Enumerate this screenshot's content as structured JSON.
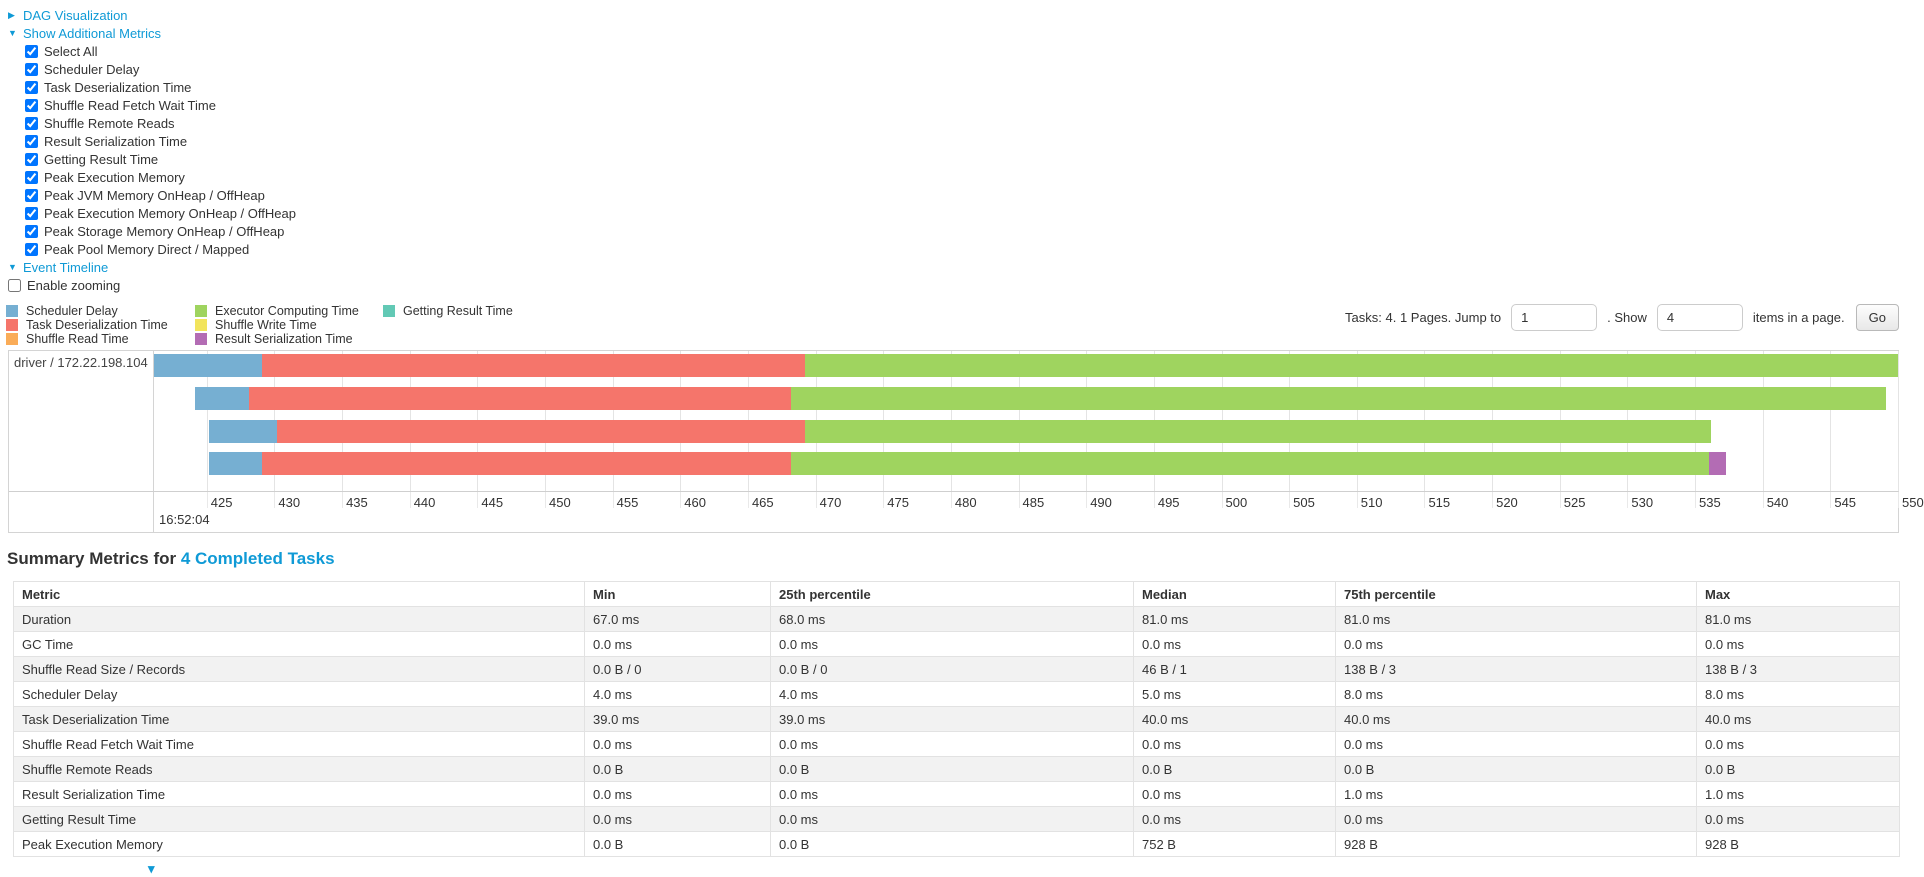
{
  "colors": {
    "link": "#0f9ad6",
    "scheduler_delay": "#76AFD2",
    "task_deserialization": "#F5756B",
    "shuffle_read": "#FAAC58",
    "executor_computing": "#9FD45F",
    "shuffle_write": "#F2E45C",
    "result_serialization": "#B36CB4",
    "getting_result": "#62C9B5"
  },
  "toggles": {
    "dag": "DAG Visualization",
    "metrics": "Show Additional Metrics",
    "timeline": "Event Timeline"
  },
  "metrics_panel": {
    "items": [
      {
        "label": "Select All",
        "checked": true
      },
      {
        "label": "Scheduler Delay",
        "checked": true
      },
      {
        "label": "Task Deserialization Time",
        "checked": true
      },
      {
        "label": "Shuffle Read Fetch Wait Time",
        "checked": true
      },
      {
        "label": "Shuffle Remote Reads",
        "checked": true
      },
      {
        "label": "Result Serialization Time",
        "checked": true
      },
      {
        "label": "Getting Result Time",
        "checked": true
      },
      {
        "label": "Peak Execution Memory",
        "checked": true
      },
      {
        "label": "Peak JVM Memory OnHeap / OffHeap",
        "checked": true
      },
      {
        "label": "Peak Execution Memory OnHeap / OffHeap",
        "checked": true
      },
      {
        "label": "Peak Storage Memory OnHeap / OffHeap",
        "checked": true
      },
      {
        "label": "Peak Pool Memory Direct / Mapped",
        "checked": true
      }
    ]
  },
  "enable_zooming": {
    "label": "Enable zooming",
    "checked": false
  },
  "legend": {
    "columns": [
      [
        {
          "label": "Scheduler Delay",
          "color_key": "scheduler_delay"
        },
        {
          "label": "Task Deserialization Time",
          "color_key": "task_deserialization"
        },
        {
          "label": "Shuffle Read Time",
          "color_key": "shuffle_read"
        }
      ],
      [
        {
          "label": "Executor Computing Time",
          "color_key": "executor_computing"
        },
        {
          "label": "Shuffle Write Time",
          "color_key": "shuffle_write"
        },
        {
          "label": "Result Serialization Time",
          "color_key": "result_serialization"
        }
      ],
      [
        {
          "label": "Getting Result Time",
          "color_key": "getting_result"
        }
      ]
    ]
  },
  "pagination": {
    "text_before": "Tasks: 4. 1 Pages. Jump to",
    "jump_value": "1",
    "text_mid": ". Show",
    "show_value": "4",
    "text_after": "items in a page.",
    "go_label": "Go"
  },
  "chart_data": {
    "type": "timeline",
    "row_label": "driver / 172.22.198.104",
    "axis": {
      "min": 421.1,
      "max": 550,
      "ticks": [
        425,
        430,
        435,
        440,
        445,
        450,
        455,
        460,
        465,
        470,
        475,
        480,
        485,
        490,
        495,
        500,
        505,
        510,
        515,
        520,
        525,
        530,
        535,
        540,
        545,
        550
      ],
      "major_label": "16:52:04"
    },
    "tasks": [
      {
        "segments": [
          {
            "kind": "scheduler_delay",
            "start": 421.1,
            "end": 429.1
          },
          {
            "kind": "task_deserialization",
            "start": 429.1,
            "end": 469.2
          },
          {
            "kind": "executor_computing",
            "start": 469.2,
            "end": 550.0
          }
        ]
      },
      {
        "segments": [
          {
            "kind": "scheduler_delay",
            "start": 424.1,
            "end": 428.1
          },
          {
            "kind": "task_deserialization",
            "start": 428.1,
            "end": 468.2
          },
          {
            "kind": "executor_computing",
            "start": 468.2,
            "end": 549.1
          }
        ]
      },
      {
        "segments": [
          {
            "kind": "scheduler_delay",
            "start": 425.2,
            "end": 430.2
          },
          {
            "kind": "task_deserialization",
            "start": 430.2,
            "end": 469.2
          },
          {
            "kind": "executor_computing",
            "start": 469.2,
            "end": 536.2
          }
        ]
      },
      {
        "segments": [
          {
            "kind": "scheduler_delay",
            "start": 425.2,
            "end": 429.1
          },
          {
            "kind": "task_deserialization",
            "start": 429.1,
            "end": 468.2
          },
          {
            "kind": "executor_computing",
            "start": 468.2,
            "end": 536.0
          },
          {
            "kind": "result_serialization",
            "start": 536.0,
            "end": 537.3
          }
        ]
      }
    ]
  },
  "summary": {
    "title_prefix": "Summary Metrics for ",
    "title_link": "4 Completed Tasks",
    "table": {
      "headers": [
        "Metric",
        "Min",
        "25th percentile",
        "Median",
        "75th percentile",
        "Max"
      ],
      "rows": [
        {
          "metric": "Duration",
          "values": [
            "67.0 ms",
            "68.0 ms",
            "81.0 ms",
            "81.0 ms",
            "81.0 ms"
          ]
        },
        {
          "metric": "GC Time",
          "values": [
            "0.0 ms",
            "0.0 ms",
            "0.0 ms",
            "0.0 ms",
            "0.0 ms"
          ]
        },
        {
          "metric": "Shuffle Read Size / Records",
          "values": [
            "0.0 B / 0",
            "0.0 B / 0",
            "46 B / 1",
            "138 B / 3",
            "138 B / 3"
          ]
        },
        {
          "metric": "Scheduler Delay",
          "values": [
            "4.0 ms",
            "4.0 ms",
            "5.0 ms",
            "8.0 ms",
            "8.0 ms"
          ]
        },
        {
          "metric": "Task Deserialization Time",
          "values": [
            "39.0 ms",
            "39.0 ms",
            "40.0 ms",
            "40.0 ms",
            "40.0 ms"
          ]
        },
        {
          "metric": "Shuffle Read Fetch Wait Time",
          "values": [
            "0.0 ms",
            "0.0 ms",
            "0.0 ms",
            "0.0 ms",
            "0.0 ms"
          ]
        },
        {
          "metric": "Shuffle Remote Reads",
          "values": [
            "0.0 B",
            "0.0 B",
            "0.0 B",
            "0.0 B",
            "0.0 B"
          ]
        },
        {
          "metric": "Result Serialization Time",
          "values": [
            "0.0 ms",
            "0.0 ms",
            "0.0 ms",
            "1.0 ms",
            "1.0 ms"
          ]
        },
        {
          "metric": "Getting Result Time",
          "values": [
            "0.0 ms",
            "0.0 ms",
            "0.0 ms",
            "0.0 ms",
            "0.0 ms"
          ]
        },
        {
          "metric": "Peak Execution Memory",
          "values": [
            "0.0 B",
            "0.0 B",
            "752 B",
            "928 B",
            "928 B"
          ]
        }
      ]
    }
  },
  "bottom_partial_glyph": "▾"
}
